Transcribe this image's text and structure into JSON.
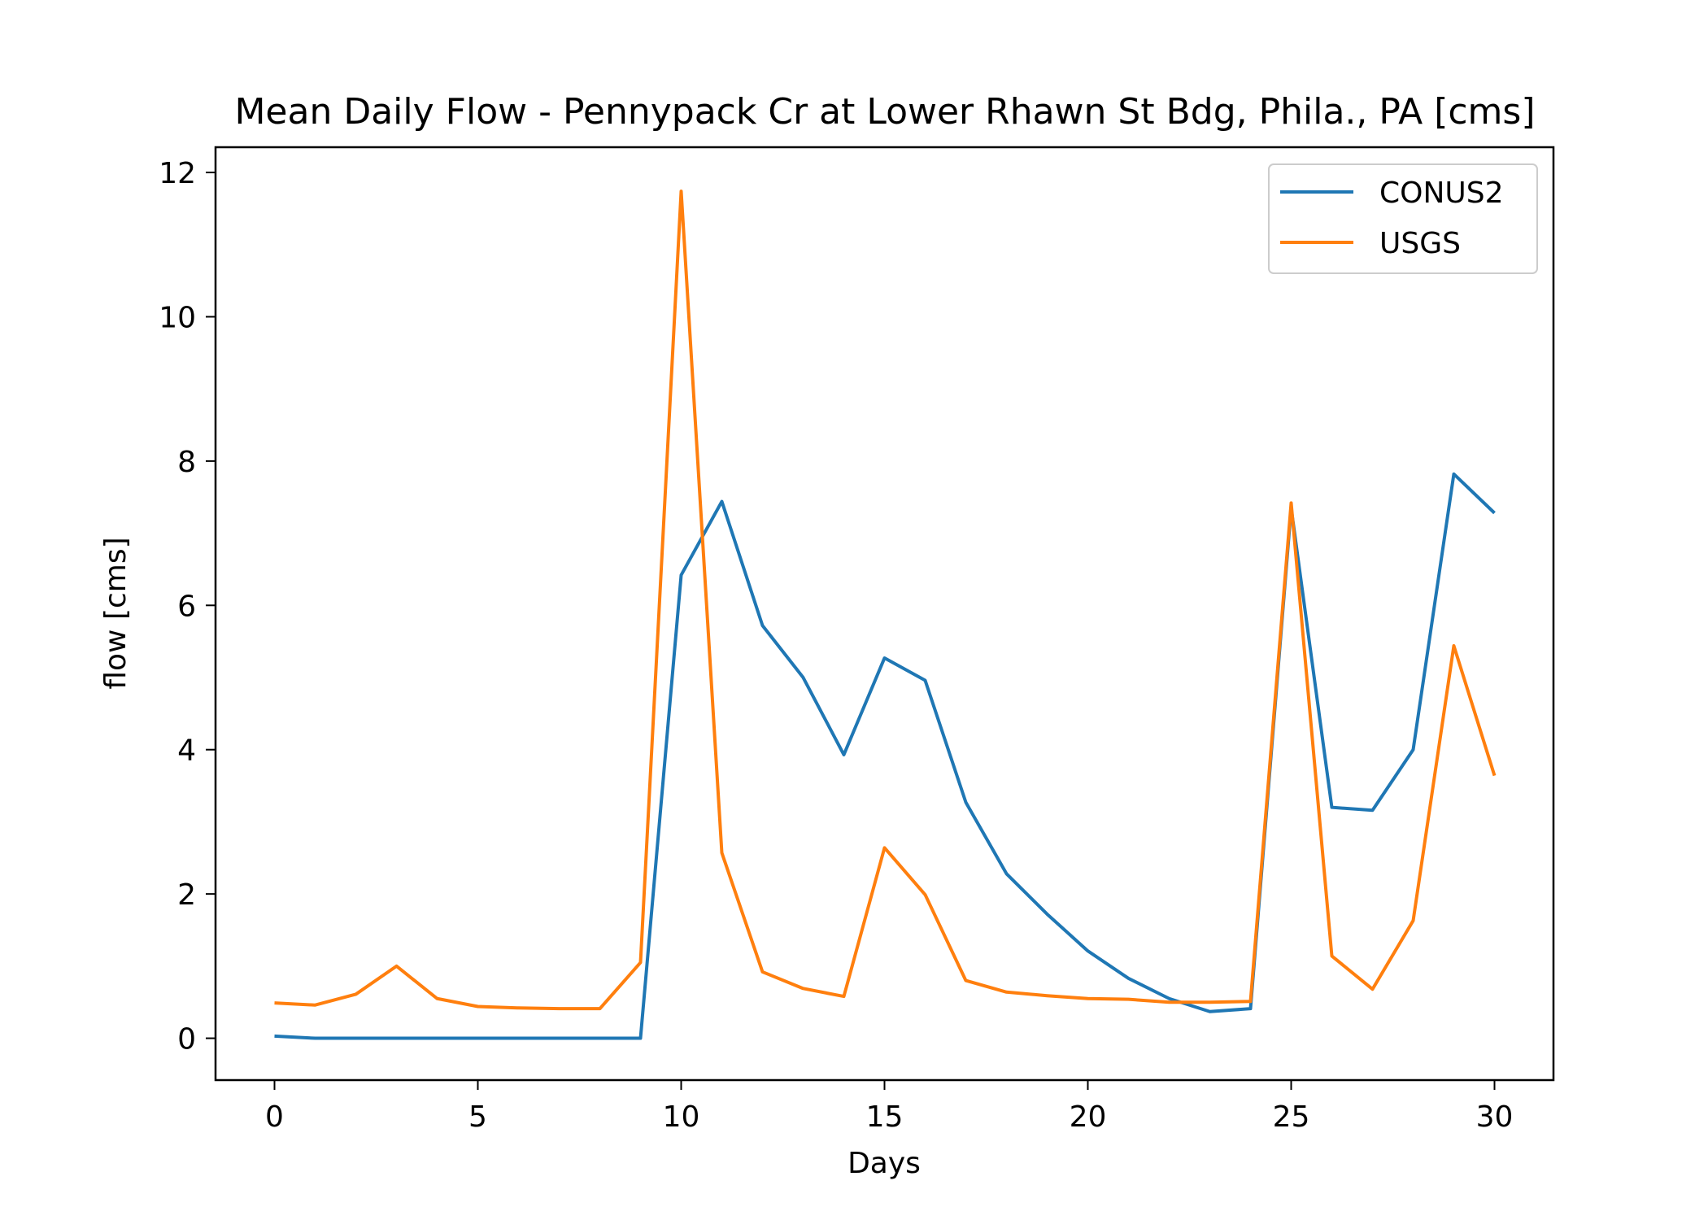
{
  "chart_data": {
    "type": "line",
    "title": "Mean Daily Flow - Pennypack Cr at Lower Rhawn St Bdg, Phila., PA [cms]",
    "xlabel": "Days",
    "ylabel": "flow [cms]",
    "xlim": [
      -1.45,
      31.45
    ],
    "ylim": [
      -0.58,
      12.35
    ],
    "xticks": [
      0,
      5,
      10,
      15,
      20,
      25,
      30
    ],
    "yticks": [
      0,
      2,
      4,
      6,
      8,
      10,
      12
    ],
    "legend_position": "top-right",
    "grid": false,
    "x": [
      0,
      1,
      2,
      3,
      4,
      5,
      6,
      7,
      8,
      9,
      10,
      11,
      12,
      13,
      14,
      15,
      16,
      17,
      18,
      19,
      20,
      21,
      22,
      23,
      24,
      25,
      26,
      27,
      28,
      29,
      30
    ],
    "series": [
      {
        "name": "CONUS2",
        "color": "#1f77b4",
        "values": [
          0.03,
          0.0,
          0.0,
          0.0,
          0.0,
          0.0,
          0.0,
          0.0,
          0.0,
          0.0,
          6.42,
          7.44,
          5.72,
          5.0,
          3.93,
          5.27,
          4.96,
          3.27,
          2.28,
          1.72,
          1.21,
          0.83,
          0.55,
          0.37,
          0.41,
          7.35,
          3.2,
          3.16,
          4.0,
          7.82,
          7.28
        ]
      },
      {
        "name": "USGS",
        "color": "#ff7f0e",
        "values": [
          0.49,
          0.46,
          0.61,
          1.0,
          0.55,
          0.44,
          0.42,
          0.41,
          0.41,
          1.05,
          11.74,
          2.57,
          0.92,
          0.69,
          0.58,
          2.64,
          1.99,
          0.8,
          0.64,
          0.59,
          0.55,
          0.54,
          0.5,
          0.5,
          0.51,
          7.42,
          1.14,
          0.68,
          1.63,
          5.44,
          3.64
        ]
      }
    ]
  }
}
